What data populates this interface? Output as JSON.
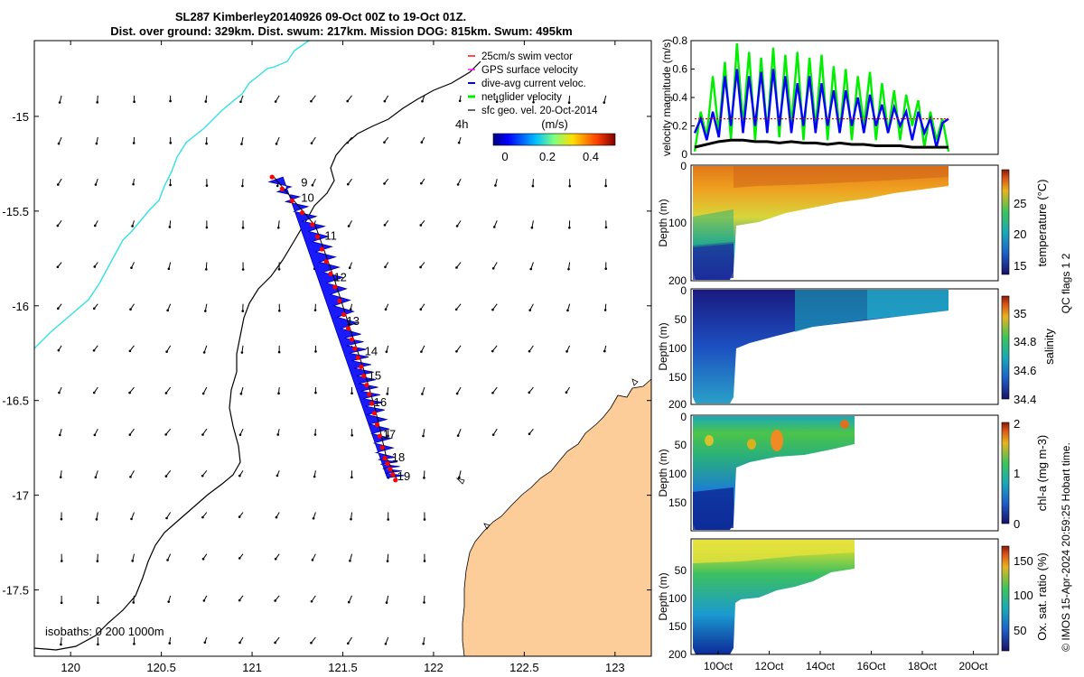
{
  "title": {
    "line1": "SL287 Kimberley20140926 09-Oct 00Z to 19-Oct 01Z.",
    "line2": "Dist. over ground: 329km. Dist. swum: 217km. Mission DOG: 815km. Swum: 495km"
  },
  "map": {
    "xticks": [
      "120",
      "120.5",
      "121",
      "121.5",
      "122",
      "122.5",
      "123"
    ],
    "yticks": [
      "-15",
      "-15.5",
      "-16",
      "-16.5",
      "-17",
      "-17.5"
    ],
    "xlim": [
      119.8,
      123.2
    ],
    "ylim": [
      -17.85,
      -14.6
    ],
    "time_marker": "4h",
    "isobaths_label": "isobaths: 0   200  1000m",
    "land_color": "#fccc99",
    "track_color": "#1a1aff",
    "cyan_line_color": "#33e0e0",
    "day_labels": [
      {
        "label": "9",
        "lon": 121.27,
        "lat": -15.37
      },
      {
        "label": "10",
        "lon": 121.27,
        "lat": -15.45
      },
      {
        "label": "11",
        "lon": 121.4,
        "lat": -15.65
      },
      {
        "label": "12",
        "lon": 121.45,
        "lat": -15.87
      },
      {
        "label": "13",
        "lon": 121.52,
        "lat": -16.1
      },
      {
        "label": "14",
        "lon": 121.62,
        "lat": -16.26
      },
      {
        "label": "15",
        "lon": 121.64,
        "lat": -16.39
      },
      {
        "label": "16",
        "lon": 121.67,
        "lat": -16.53
      },
      {
        "label": "17",
        "lon": 121.72,
        "lat": -16.7
      },
      {
        "label": "18",
        "lon": 121.77,
        "lat": -16.82
      },
      {
        "label": "19",
        "lon": 121.8,
        "lat": -16.92
      }
    ],
    "colorbar": {
      "title": "(m/s)",
      "ticks": [
        "0",
        "0.2",
        "0.4"
      ]
    }
  },
  "legend": [
    {
      "label": "25cm/s swim vector",
      "color": "#ff0000"
    },
    {
      "label": "GPS surface velocity",
      "color": "#ff00ff"
    },
    {
      "label": "dive-avg current veloc.",
      "color": "#0000ff"
    },
    {
      "label": "net glider velocity",
      "color": "#00ee00"
    },
    {
      "label": "sfc geo. vel. 20-Oct-2014",
      "color": "#000000"
    }
  ],
  "velocity_plot": {
    "ylabel": "velocity magnitude (m/s)",
    "yticks": [
      "0",
      "0.2",
      "0.4",
      "0.6",
      "0.8"
    ]
  },
  "sections": {
    "depth_label": "Depth (m)",
    "depth_ticks": [
      "0",
      "50",
      "100",
      "150",
      "200"
    ],
    "depth_ticks_top": [
      "0",
      "100",
      "200"
    ],
    "xticks": [
      "10Oct",
      "12Oct",
      "14Oct",
      "16Oct",
      "18Oct",
      "20Oct"
    ],
    "panels": [
      {
        "cbar_label": "temperature (°C)",
        "cbar_ticks": [
          "15",
          "20",
          "25"
        ]
      },
      {
        "cbar_label": "salinity",
        "cbar_ticks": [
          "34.4",
          "34.6",
          "34.8",
          "35"
        ]
      },
      {
        "cbar_label": "chl-a (mg m-3)",
        "cbar_ticks": [
          "0",
          "1",
          "2"
        ]
      },
      {
        "cbar_label": "Ox. sat. ratio (%)",
        "cbar_ticks": [
          "50",
          "100",
          "150"
        ]
      }
    ]
  },
  "qc_label": "QC flags 1  2",
  "footer": "© IMOS 15-Apr-2024 20:59:25 Hobart time.",
  "chart_data": {
    "type": "line",
    "title": "SL287 Kimberley20140926 09-Oct 00Z to 19-Oct 01Z.",
    "ylabel": "velocity magnitude (m/s)",
    "ylim": [
      0,
      0.8
    ],
    "x_range": [
      "09-Oct",
      "19-Oct"
    ],
    "series": [
      {
        "name": "net glider velocity",
        "color": "#00ee00",
        "values": [
          0.02,
          0.3,
          0.12,
          0.55,
          0.15,
          0.65,
          0.1,
          0.78,
          0.2,
          0.72,
          0.1,
          0.68,
          0.15,
          0.75,
          0.12,
          0.7,
          0.2,
          0.72,
          0.1,
          0.68,
          0.18,
          0.7,
          0.1,
          0.62,
          0.15,
          0.6,
          0.1,
          0.55,
          0.2,
          0.58,
          0.1,
          0.5,
          0.15,
          0.45,
          0.1,
          0.42,
          0.2,
          0.38,
          0.05,
          0.3,
          0.1,
          0.25,
          0.02
        ]
      },
      {
        "name": "dive-avg current veloc.",
        "color": "#0000ff",
        "values": [
          0.15,
          0.25,
          0.1,
          0.3,
          0.12,
          0.55,
          0.2,
          0.6,
          0.15,
          0.55,
          0.2,
          0.58,
          0.15,
          0.6,
          0.2,
          0.55,
          0.15,
          0.5,
          0.2,
          0.55,
          0.15,
          0.5,
          0.2,
          0.45,
          0.15,
          0.45,
          0.2,
          0.4,
          0.15,
          0.42,
          0.2,
          0.35,
          0.15,
          0.33,
          0.2,
          0.3,
          0.1,
          0.3,
          0.15,
          0.25,
          0.05,
          0.22,
          0.25
        ]
      },
      {
        "name": "sfc geo. vel. 20-Oct-2014",
        "color": "#000000",
        "values": [
          0.05,
          0.07,
          0.09,
          0.1,
          0.1,
          0.09,
          0.09,
          0.08,
          0.09,
          0.08,
          0.08,
          0.07,
          0.08,
          0.07,
          0.07,
          0.06,
          0.06,
          0.06,
          0.05,
          0.05,
          0.05,
          0.05
        ]
      },
      {
        "name": "25cm/s swim vector",
        "color": "#ff0000",
        "values": [
          0.25,
          0.25,
          0.25,
          0.25,
          0.25,
          0.25,
          0.25,
          0.25,
          0.25,
          0.25,
          0.25
        ]
      }
    ],
    "sections": [
      {
        "variable": "temperature",
        "unit": "°C",
        "range": [
          13,
          30
        ]
      },
      {
        "variable": "salinity",
        "unit": "",
        "range": [
          34.4,
          35.1
        ]
      },
      {
        "variable": "chl-a",
        "unit": "mg m-3",
        "range": [
          0,
          2
        ]
      },
      {
        "variable": "Ox. sat. ratio",
        "unit": "%",
        "range": [
          20,
          175
        ]
      }
    ]
  }
}
